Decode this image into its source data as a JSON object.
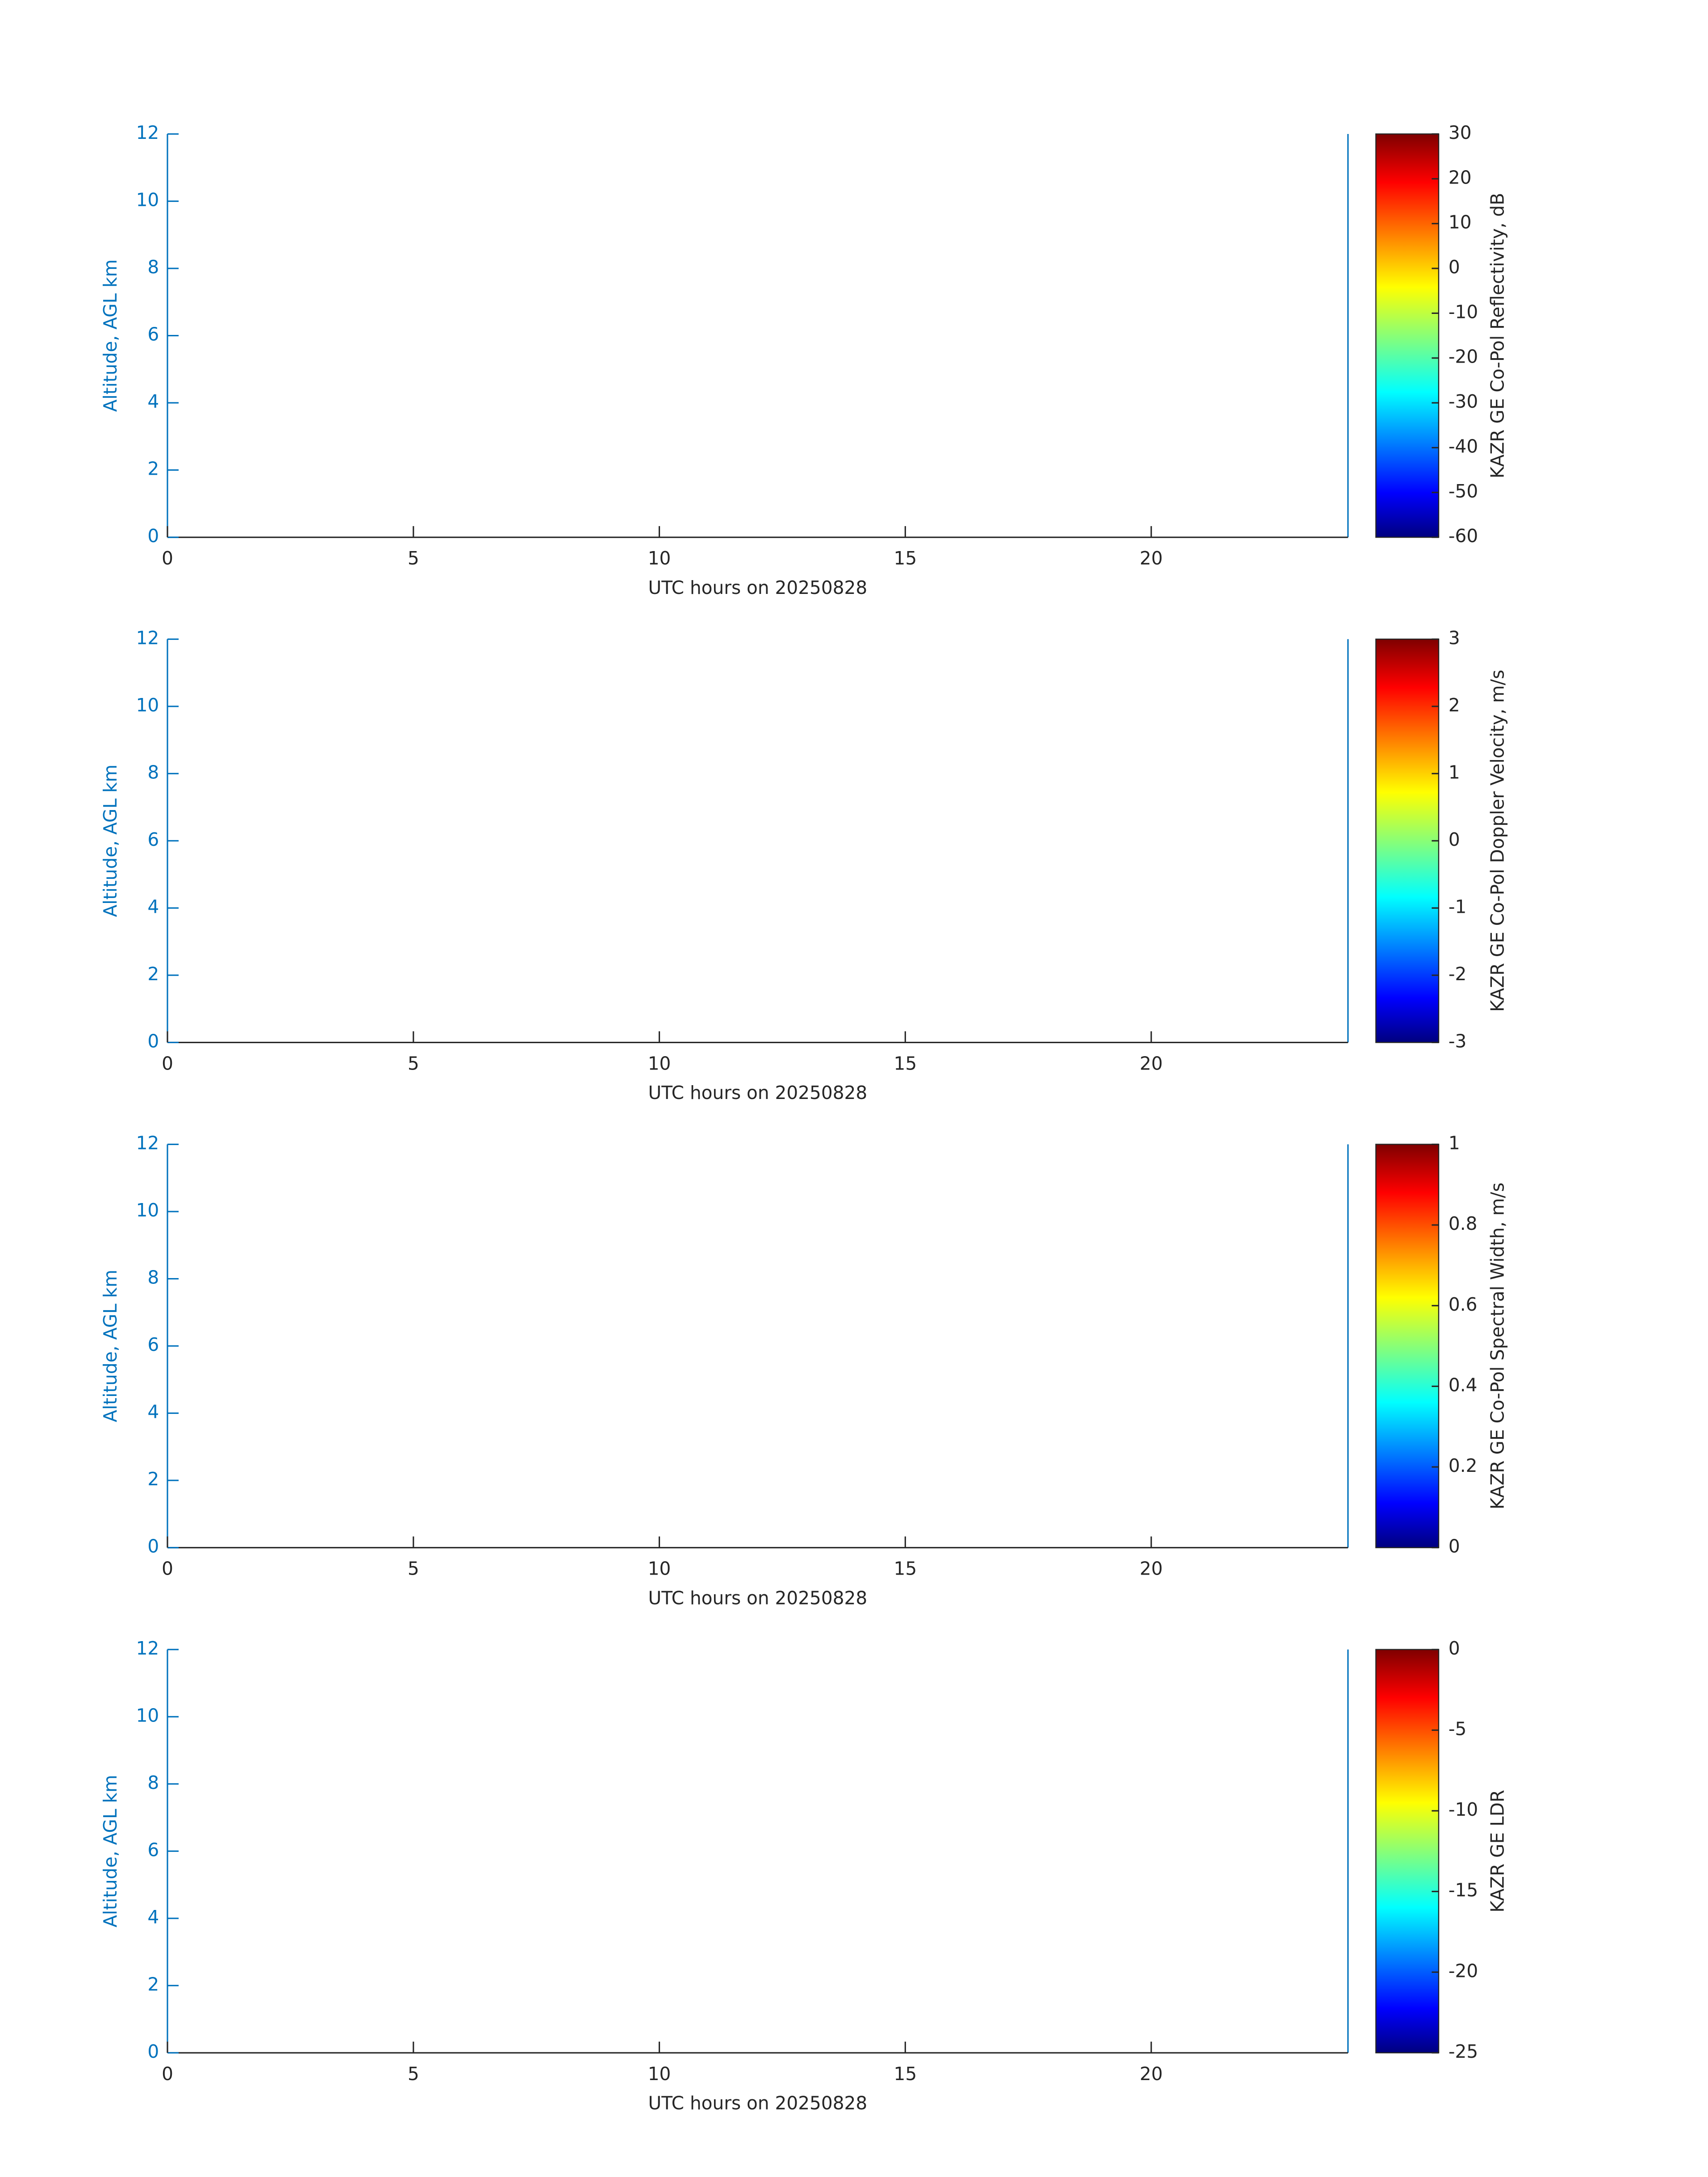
{
  "chart_data": [
    {
      "type": "heatmap",
      "xlabel": "UTC hours on 20250828",
      "ylabel": "Altitude, AGL km",
      "xlim": [
        0,
        24
      ],
      "xticks": [
        0,
        5,
        10,
        15,
        20
      ],
      "ylim": [
        0,
        12
      ],
      "yticks": [
        0,
        2,
        4,
        6,
        8,
        10,
        12
      ],
      "colorbar": {
        "label": "KAZR GE Co-Pol Reflectivity, dB",
        "lim": [
          -60,
          30
        ],
        "ticks": [
          -60,
          -50,
          -40,
          -30,
          -20,
          -10,
          0,
          10,
          20,
          30
        ],
        "colormap": "jet"
      }
    },
    {
      "type": "heatmap",
      "xlabel": "UTC hours on 20250828",
      "ylabel": "Altitude, AGL km",
      "xlim": [
        0,
        24
      ],
      "xticks": [
        0,
        5,
        10,
        15,
        20
      ],
      "ylim": [
        0,
        12
      ],
      "yticks": [
        0,
        2,
        4,
        6,
        8,
        10,
        12
      ],
      "colorbar": {
        "label": "KAZR GE Co-Pol Doppler Velocity, m/s",
        "lim": [
          -3,
          3
        ],
        "ticks": [
          -3,
          -2,
          -1,
          0,
          1,
          2,
          3
        ],
        "colormap": "jet"
      }
    },
    {
      "type": "heatmap",
      "xlabel": "UTC hours on 20250828",
      "ylabel": "Altitude, AGL km",
      "xlim": [
        0,
        24
      ],
      "xticks": [
        0,
        5,
        10,
        15,
        20
      ],
      "ylim": [
        0,
        12
      ],
      "yticks": [
        0,
        2,
        4,
        6,
        8,
        10,
        12
      ],
      "colorbar": {
        "label": "KAZR GE Co-Pol Spectral Width, m/s",
        "lim": [
          0,
          1
        ],
        "ticks": [
          0,
          0.2,
          0.4,
          0.6,
          0.8,
          1
        ],
        "colormap": "jet"
      }
    },
    {
      "type": "heatmap",
      "xlabel": "UTC hours on 20250828",
      "ylabel": "Altitude, AGL km",
      "xlim": [
        0,
        24
      ],
      "xticks": [
        0,
        5,
        10,
        15,
        20
      ],
      "ylim": [
        0,
        12
      ],
      "yticks": [
        0,
        2,
        4,
        6,
        8,
        10,
        12
      ],
      "colorbar": {
        "label": "KAZR GE LDR",
        "lim": [
          -25,
          0
        ],
        "ticks": [
          -25,
          -20,
          -15,
          -10,
          -5,
          0
        ],
        "colormap": "jet"
      }
    }
  ]
}
